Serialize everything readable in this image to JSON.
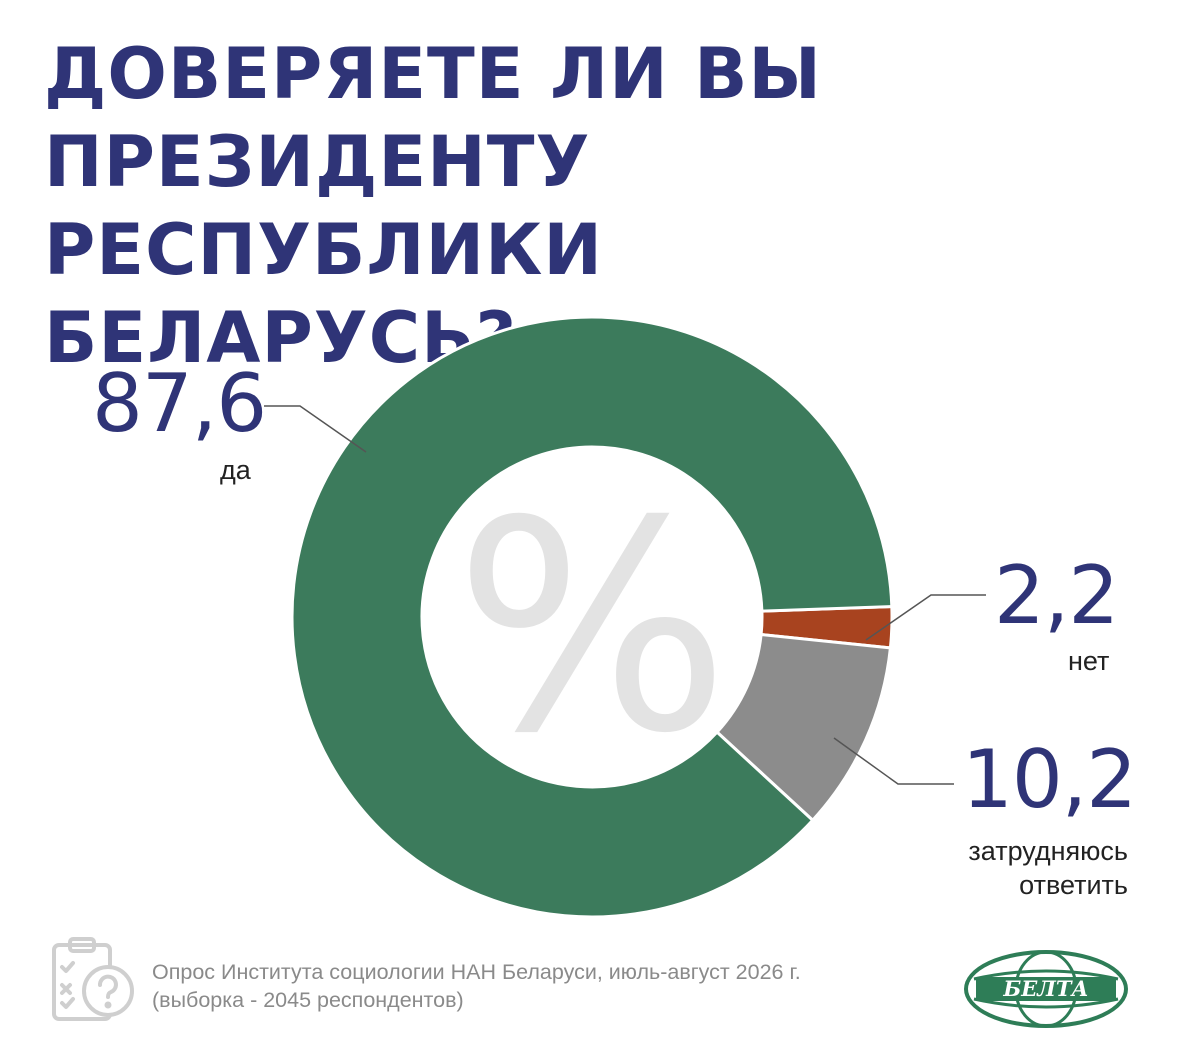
{
  "title_lines": [
    "ДОВЕРЯЕТЕ ЛИ ВЫ",
    "ПРЕЗИДЕНТУ РЕСПУБЛИКИ",
    "БЕЛАРУСЬ?"
  ],
  "center_symbol": "%",
  "chart_data": {
    "type": "pie",
    "title": "ДОВЕРЯЕТЕ ЛИ ВЫ ПРЕЗИДЕНТУ РЕСПУБЛИКИ БЕЛАРУСЬ?",
    "unit": "%",
    "categories": [
      "да",
      "нет",
      "затрудняюсь ответить"
    ],
    "values": [
      87.6,
      2.2,
      10.2
    ],
    "value_labels": [
      "87,6",
      "2,2",
      "10,2"
    ],
    "colors": [
      "#3c7b5c",
      "#a8431f",
      "#8c8c8c"
    ],
    "donut": true
  },
  "labels": {
    "yes_value": "87,6",
    "yes_label": "да",
    "no_value": "2,2",
    "no_label": "нет",
    "unsure_value": "10,2",
    "unsure_label_line1": "затрудняюсь",
    "unsure_label_line2": "ответить"
  },
  "footer": {
    "line1": "Опрос Института социологии НАН Беларуси, июль-август 2026 г.",
    "line2": "(выборка - 2045 респондентов)"
  },
  "logo_text": "БЕЛТА",
  "icons": [
    "clipboard-survey-icon",
    "globe-logo-icon"
  ]
}
